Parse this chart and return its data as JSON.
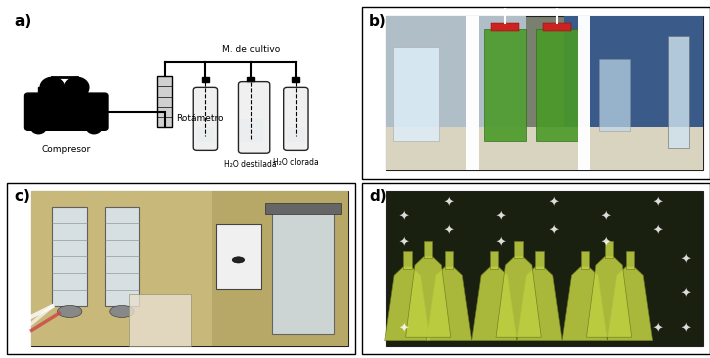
{
  "figsize": [
    7.1,
    3.58
  ],
  "dpi": 100,
  "background_color": "#ffffff",
  "panels": [
    "a",
    "b",
    "c",
    "d"
  ],
  "panel_label_fontsize": 11,
  "panel_label_color": "#000000",
  "panel_a": {
    "label": "a)",
    "bg_color": "#f8f8f8",
    "border_color": "#000000",
    "title": "M. de cultivo",
    "compressor_label": "Compresor",
    "rotameter_label": "Rotámetro",
    "h2o_destilada_label": "H₂O destilada",
    "h2o_clorada_label": "H₂O clorada"
  },
  "panel_b": {
    "label": "b)",
    "photo_color": "#a0c080",
    "bg_color": "#c8b898"
  },
  "panel_c": {
    "label": "c)",
    "bg_color": "#b8a888"
  },
  "panel_d": {
    "label": "d)",
    "bg_color": "#c8c890"
  }
}
